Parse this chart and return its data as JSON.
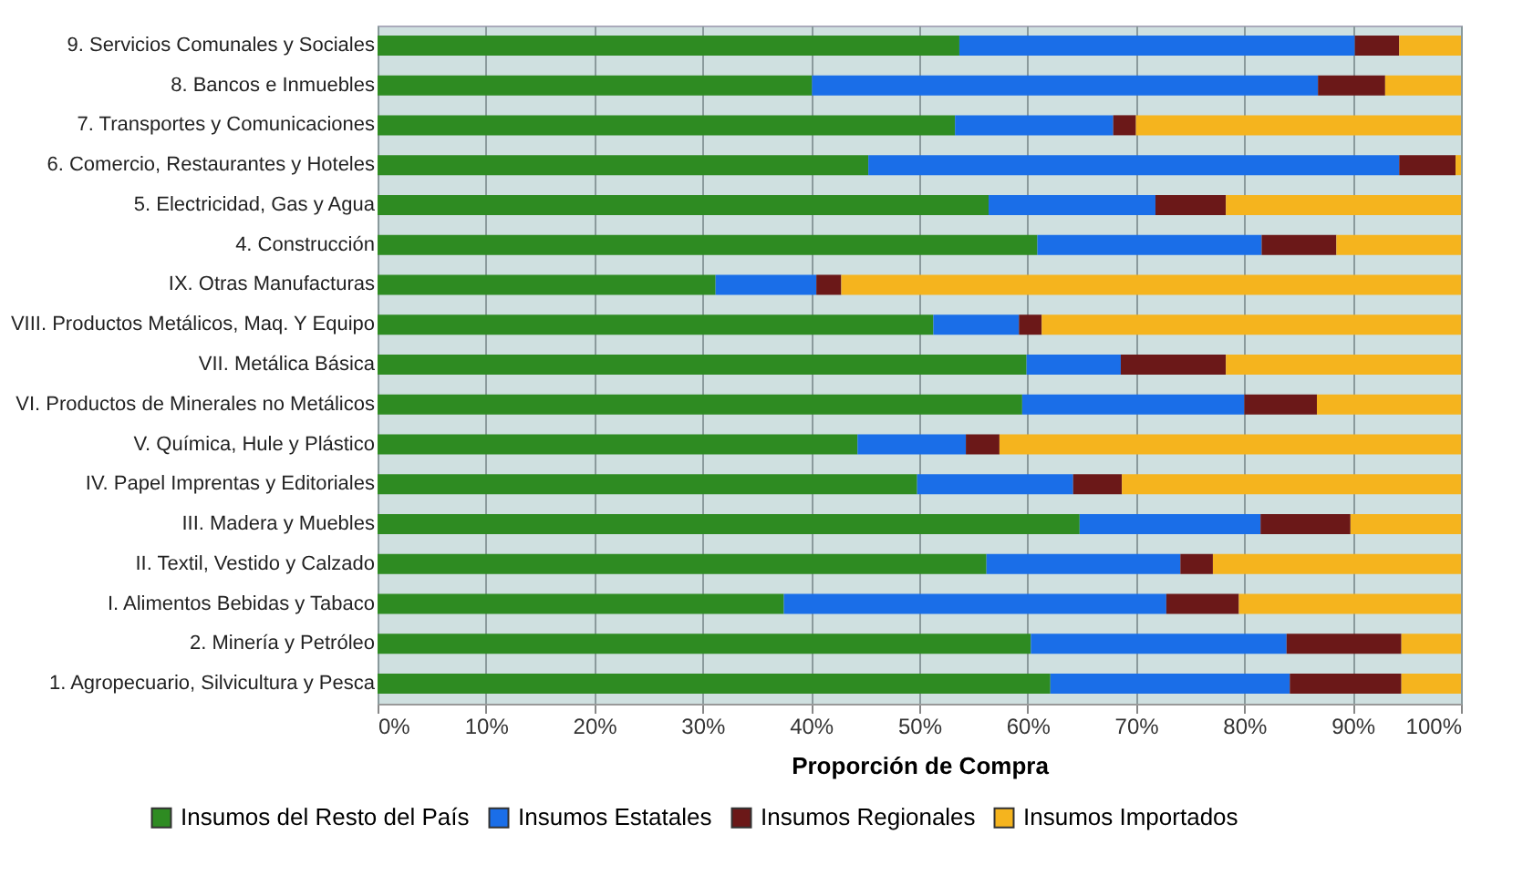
{
  "chart_data": {
    "type": "bar",
    "orientation": "horizontal",
    "stacked": true,
    "xlabel": "Proporción de Compra",
    "legend": "bottom",
    "grid": "x",
    "categories": [
      "9. Servicios Comunales y Sociales",
      "8. Bancos e Inmuebles",
      "7. Transportes y Comunicaciones",
      "6. Comercio, Restaurantes y Hoteles",
      "5. Electricidad, Gas y Agua",
      "4. Construcción",
      "IX. Otras Manufacturas",
      "VIII. Productos Metálicos, Maq. Y Equipo",
      "VII. Metálica Básica",
      "VI. Productos de Minerales no Metálicos",
      "V. Química, Hule y Plástico",
      "IV. Papel Imprentas y Editoriales",
      "III. Madera y Muebles",
      "II. Textil, Vestido y Calzado",
      "I. Alimentos Bebidas y Tabaco",
      "2. Minería y Petróleo",
      "1. Agropecuario, Silvicultura y Pesca"
    ],
    "series": [
      {
        "name": "Insumos del Resto del País",
        "color": "#2e8b22",
        "values": [
          53.7,
          40.1,
          53.3,
          45.3,
          56.4,
          60.9,
          31.2,
          51.3,
          59.9,
          59.5,
          44.3,
          49.8,
          64.8,
          56.2,
          37.5,
          60.3,
          62.1
        ]
      },
      {
        "name": "Insumos Estatales",
        "color": "#1a6ee8",
        "values": [
          36.5,
          46.7,
          14.6,
          49.0,
          15.4,
          20.7,
          9.3,
          7.9,
          8.7,
          20.5,
          10.0,
          14.4,
          16.7,
          17.9,
          35.3,
          23.6,
          22.1
        ]
      },
      {
        "name": "Insumos Regionales",
        "color": "#6b1818",
        "values": [
          4.1,
          6.2,
          2.1,
          5.2,
          6.5,
          6.9,
          2.3,
          2.1,
          9.7,
          6.7,
          3.1,
          4.5,
          8.3,
          3.0,
          6.7,
          10.6,
          10.3
        ]
      },
      {
        "name": "Insumos Importados",
        "color": "#f5b41e",
        "values": [
          5.7,
          7.0,
          30.0,
          0.5,
          21.7,
          11.5,
          57.2,
          38.7,
          21.7,
          13.3,
          42.6,
          31.3,
          10.2,
          22.9,
          20.5,
          5.5,
          5.5
        ]
      }
    ],
    "xlim": [
      0,
      100
    ],
    "xticks": [
      {
        "value": 0,
        "label": "0%"
      },
      {
        "value": 10,
        "label": "10%"
      },
      {
        "value": 20,
        "label": "20%"
      },
      {
        "value": 30,
        "label": "30%"
      },
      {
        "value": 40,
        "label": "40%"
      },
      {
        "value": 50,
        "label": "50%"
      },
      {
        "value": 60,
        "label": "60%"
      },
      {
        "value": 70,
        "label": "70%"
      },
      {
        "value": 80,
        "label": "80%"
      },
      {
        "value": 90,
        "label": "90%"
      },
      {
        "value": 100,
        "label": "100%"
      }
    ]
  }
}
